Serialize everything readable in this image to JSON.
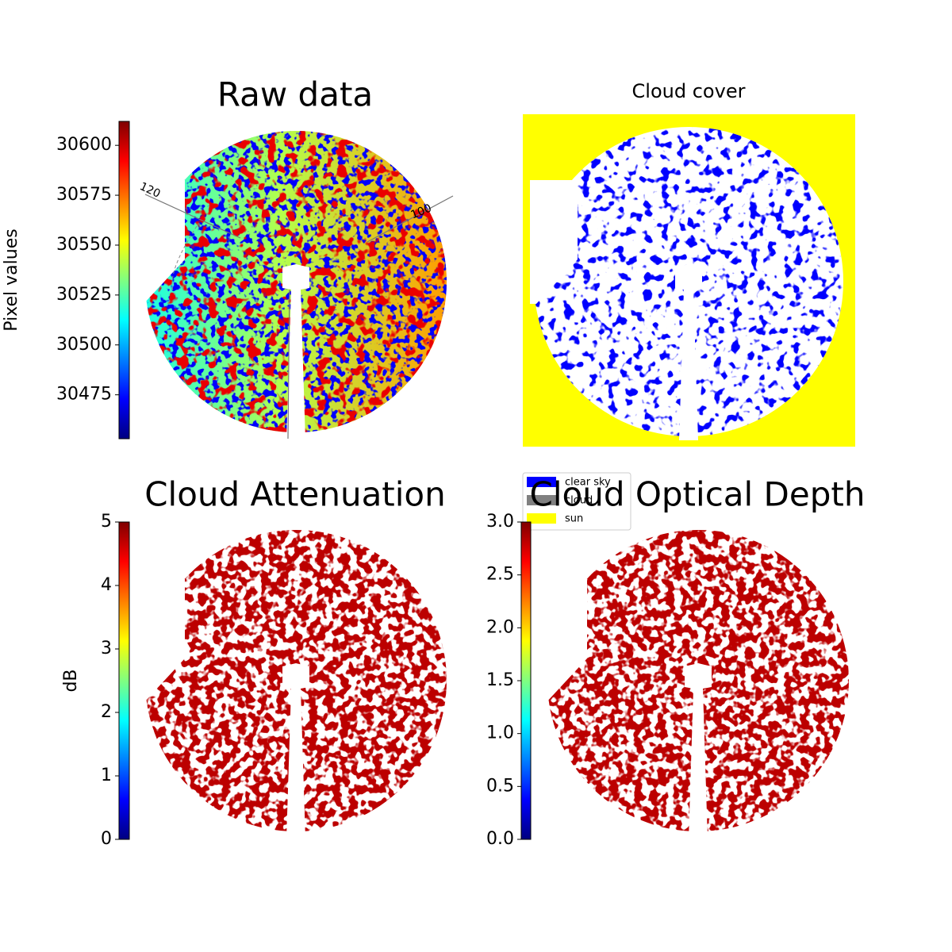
{
  "chart_data": [
    {
      "type": "image",
      "title": "Raw data",
      "colormap": "jet",
      "colorbar_label": "Pixel values",
      "clim": [
        30453,
        30612
      ],
      "cticks": [
        30475,
        30500,
        30525,
        30550,
        30575,
        30600
      ],
      "annotations": [
        "120",
        "100"
      ]
    },
    {
      "type": "image",
      "title": "Cloud cover",
      "series": [
        {
          "name": "clear sky",
          "color": "#0000ff"
        },
        {
          "name": "cloud",
          "color": "#808080"
        },
        {
          "name": "sun",
          "color": "#ffff00"
        }
      ]
    },
    {
      "type": "image",
      "title": "Cloud Attenuation",
      "colormap": "jet",
      "colorbar_label": "dB",
      "clim": [
        0,
        5
      ],
      "cticks": [
        0,
        1,
        2,
        3,
        4,
        5
      ]
    },
    {
      "type": "image",
      "title": "Cloud Optical Depth",
      "colormap": "jet",
      "clim": [
        0,
        3
      ],
      "cticks": [
        {
          "value": 0,
          "label": "0.0"
        },
        {
          "value": 0.5,
          "label": "0.5"
        },
        {
          "value": 1,
          "label": "1.0"
        },
        {
          "value": 1.5,
          "label": "1.5"
        },
        {
          "value": 2,
          "label": "2.0"
        },
        {
          "value": 2.5,
          "label": "2.5"
        },
        {
          "value": 3,
          "label": "3.0"
        }
      ]
    }
  ]
}
